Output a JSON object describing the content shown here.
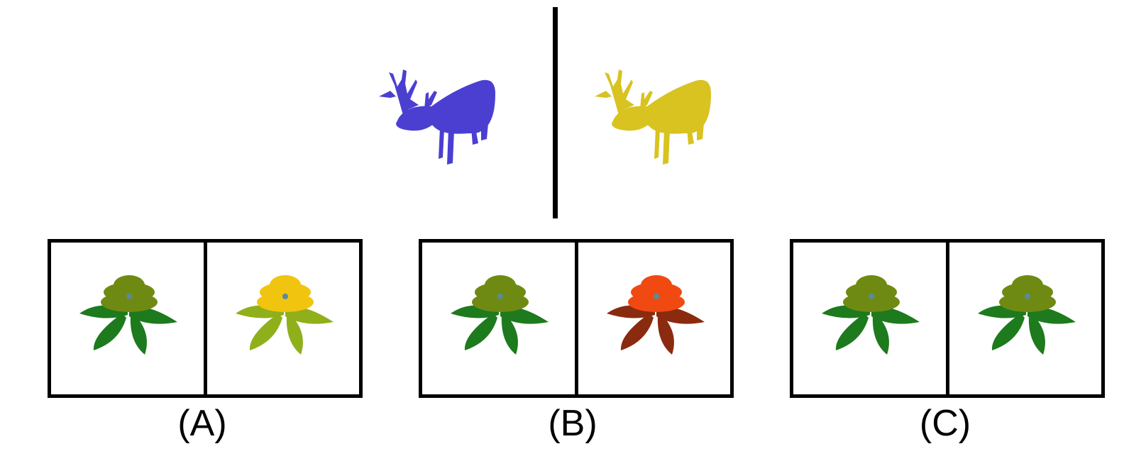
{
  "example": {
    "source_color": "#4b3fd1",
    "target_color": "#d8c320",
    "source_icon": "deer-icon",
    "target_icon": "deer-icon"
  },
  "options": [
    {
      "label": "(A)",
      "left_petal": "#6f8a12",
      "left_leaf": "#1d7a1d",
      "right_petal": "#f1c40f",
      "right_leaf": "#8fb01a",
      "icon": "flower-icon"
    },
    {
      "label": "(B)",
      "left_petal": "#6f8a12",
      "left_leaf": "#1d7a1d",
      "right_petal": "#f04a12",
      "right_leaf": "#8a2a0e",
      "icon": "flower-icon"
    },
    {
      "label": "(C)",
      "left_petal": "#6f8a12",
      "left_leaf": "#1d7a1d",
      "right_petal": "#6f8a12",
      "right_leaf": "#1d7a1d",
      "icon": "flower-icon"
    }
  ]
}
